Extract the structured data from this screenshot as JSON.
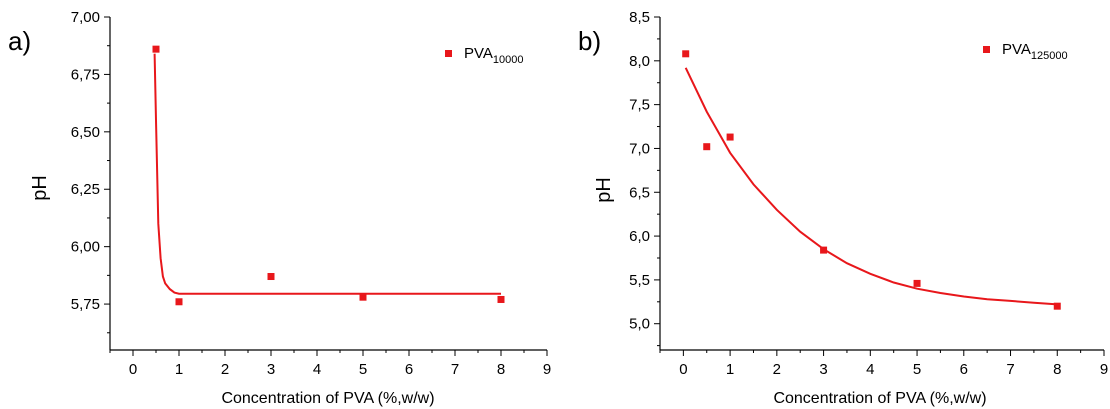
{
  "chart_data": [
    {
      "type": "scatter",
      "panel_label": "a)",
      "xlabel": "Concentration of PVA (%,w/w)",
      "ylabel": "pH",
      "xlim": [
        -0.5,
        9
      ],
      "ylim": [
        5.55,
        7.0
      ],
      "x_ticks": [
        0,
        1,
        2,
        3,
        4,
        5,
        6,
        7,
        8,
        9
      ],
      "y_ticks": [
        "5,75",
        "6,00",
        "6,25",
        "6,50",
        "6,75",
        "7,00"
      ],
      "y_tick_values": [
        5.75,
        6.0,
        6.25,
        6.5,
        6.75,
        7.0
      ],
      "legend": {
        "base": "PVA",
        "sub": "10000",
        "placement": "top-right"
      },
      "color": "#e8171b",
      "series": [
        {
          "x": [
            0.5,
            1,
            3,
            5,
            8
          ],
          "y": [
            6.86,
            5.76,
            5.87,
            5.78,
            5.77
          ]
        }
      ],
      "fit": {
        "x": [
          0.47,
          0.5,
          0.55,
          0.6,
          0.65,
          0.7,
          0.8,
          0.9,
          1.0,
          1.5,
          2,
          3,
          4,
          5,
          6,
          7,
          8
        ],
        "y": [
          6.84,
          6.55,
          6.1,
          5.95,
          5.87,
          5.84,
          5.815,
          5.8,
          5.795,
          5.795,
          5.795,
          5.795,
          5.795,
          5.795,
          5.795,
          5.795,
          5.795
        ]
      }
    },
    {
      "type": "scatter",
      "panel_label": "b)",
      "xlabel": "Concentration of PVA (%,w/w)",
      "ylabel": "pH",
      "xlim": [
        -0.5,
        9
      ],
      "ylim": [
        4.7,
        8.5
      ],
      "x_ticks": [
        0,
        1,
        2,
        3,
        4,
        5,
        6,
        7,
        8,
        9
      ],
      "y_ticks": [
        "5,0",
        "5,5",
        "6,0",
        "6,5",
        "7,0",
        "7,5",
        "8,0",
        "8,5"
      ],
      "y_tick_values": [
        5.0,
        5.5,
        6.0,
        6.5,
        7.0,
        7.5,
        8.0,
        8.5
      ],
      "legend": {
        "base": "PVA",
        "sub": "125000",
        "placement": "top-right"
      },
      "color": "#e8171b",
      "series": [
        {
          "x": [
            0.05,
            0.5,
            1,
            3,
            5,
            8
          ],
          "y": [
            8.08,
            7.02,
            7.13,
            5.84,
            5.46,
            5.2
          ]
        }
      ],
      "fit": {
        "x": [
          0.05,
          0.5,
          1,
          1.5,
          2,
          2.5,
          3,
          3.5,
          4,
          4.5,
          5,
          5.5,
          6,
          6.5,
          7,
          7.5,
          8
        ],
        "y": [
          7.92,
          7.42,
          6.95,
          6.59,
          6.3,
          6.05,
          5.85,
          5.69,
          5.57,
          5.47,
          5.4,
          5.35,
          5.31,
          5.28,
          5.26,
          5.24,
          5.22
        ]
      }
    }
  ]
}
